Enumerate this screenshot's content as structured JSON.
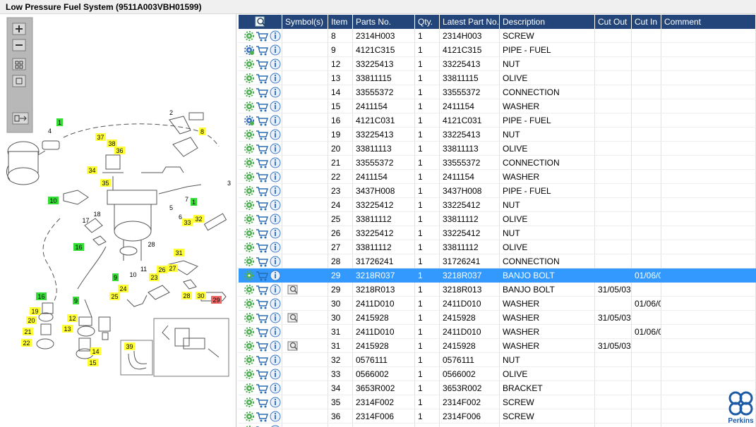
{
  "header": {
    "title": "Low Pressure Fuel System (9511A003VBH01599)"
  },
  "diagram": {
    "callouts": [
      {
        "label": "1",
        "color": "#33dd33"
      },
      {
        "label": "1",
        "color": "#33dd33"
      },
      {
        "label": "10",
        "color": "#33dd33"
      },
      {
        "label": "16",
        "color": "#33dd33"
      },
      {
        "label": "16",
        "color": "#33dd33"
      },
      {
        "label": "9",
        "color": "#33dd33"
      },
      {
        "label": "9",
        "color": "#33dd33"
      },
      {
        "label": "8",
        "color": "#ffff33"
      },
      {
        "label": "37",
        "color": "#ffff33"
      },
      {
        "label": "38",
        "color": "#ffff33"
      },
      {
        "label": "36",
        "color": "#ffff33"
      },
      {
        "label": "34",
        "color": "#ffff33"
      },
      {
        "label": "35",
        "color": "#ffff33"
      },
      {
        "label": "33",
        "color": "#ffff33"
      },
      {
        "label": "32",
        "color": "#ffff33"
      },
      {
        "label": "31",
        "color": "#ffff33"
      },
      {
        "label": "26",
        "color": "#ffff33"
      },
      {
        "label": "27",
        "color": "#ffff33"
      },
      {
        "label": "23",
        "color": "#ffff33"
      },
      {
        "label": "24",
        "color": "#ffff33"
      },
      {
        "label": "25",
        "color": "#ffff33"
      },
      {
        "label": "28",
        "color": "#ffff33"
      },
      {
        "label": "30",
        "color": "#ffff33"
      },
      {
        "label": "19",
        "color": "#ffff33"
      },
      {
        "label": "20",
        "color": "#ffff33"
      },
      {
        "label": "21",
        "color": "#ffff33"
      },
      {
        "label": "22",
        "color": "#ffff33"
      },
      {
        "label": "12",
        "color": "#ffff33"
      },
      {
        "label": "13",
        "color": "#ffff33"
      },
      {
        "label": "14",
        "color": "#ffff33"
      },
      {
        "label": "15",
        "color": "#ffff33"
      },
      {
        "label": "39",
        "color": "#ffff33"
      },
      {
        "label": "29",
        "color": "#ee6666"
      },
      {
        "label": "4"
      },
      {
        "label": "2"
      },
      {
        "label": "3"
      },
      {
        "label": "5"
      },
      {
        "label": "6"
      },
      {
        "label": "7"
      },
      {
        "label": "17"
      },
      {
        "label": "18"
      },
      {
        "label": "10"
      },
      {
        "label": "11"
      },
      {
        "label": "28"
      }
    ]
  },
  "table": {
    "columns": [
      "Symbol(s)",
      "Item",
      "Parts No.",
      "Qty.",
      "Latest Part No.",
      "Description",
      "Cut Out",
      "Cut In",
      "Comment"
    ],
    "rows": [
      {
        "item": 8,
        "part_no": "2314H003",
        "qty": 1,
        "latest_part_no": "2314H003",
        "description": "SCREW"
      },
      {
        "item": 9,
        "part_no": "4121C315",
        "qty": 1,
        "latest_part_no": "4121C315",
        "description": "PIPE - FUEL",
        "icon": "blue-gear"
      },
      {
        "item": 12,
        "part_no": "33225413",
        "qty": 1,
        "latest_part_no": "33225413",
        "description": "NUT"
      },
      {
        "item": 13,
        "part_no": "33811115",
        "qty": 1,
        "latest_part_no": "33811115",
        "description": "OLIVE"
      },
      {
        "item": 14,
        "part_no": "33555372",
        "qty": 1,
        "latest_part_no": "33555372",
        "description": "CONNECTION"
      },
      {
        "item": 15,
        "part_no": "2411154",
        "qty": 1,
        "latest_part_no": "2411154",
        "description": "WASHER"
      },
      {
        "item": 16,
        "part_no": "4121C031",
        "qty": 1,
        "latest_part_no": "4121C031",
        "description": "PIPE - FUEL",
        "icon": "blue-gear"
      },
      {
        "item": 19,
        "part_no": "33225413",
        "qty": 1,
        "latest_part_no": "33225413",
        "description": "NUT"
      },
      {
        "item": 20,
        "part_no": "33811113",
        "qty": 1,
        "latest_part_no": "33811113",
        "description": "OLIVE"
      },
      {
        "item": 21,
        "part_no": "33555372",
        "qty": 1,
        "latest_part_no": "33555372",
        "description": "CONNECTION"
      },
      {
        "item": 22,
        "part_no": "2411154",
        "qty": 1,
        "latest_part_no": "2411154",
        "description": "WASHER"
      },
      {
        "item": 23,
        "part_no": "3437H008",
        "qty": 1,
        "latest_part_no": "3437H008",
        "description": "PIPE - FUEL"
      },
      {
        "item": 24,
        "part_no": "33225412",
        "qty": 1,
        "latest_part_no": "33225412",
        "description": "NUT"
      },
      {
        "item": 25,
        "part_no": "33811112",
        "qty": 1,
        "latest_part_no": "33811112",
        "description": "OLIVE"
      },
      {
        "item": 26,
        "part_no": "33225412",
        "qty": 1,
        "latest_part_no": "33225412",
        "description": "NUT"
      },
      {
        "item": 27,
        "part_no": "33811112",
        "qty": 1,
        "latest_part_no": "33811112",
        "description": "OLIVE"
      },
      {
        "item": 28,
        "part_no": "31726241",
        "qty": 1,
        "latest_part_no": "31726241",
        "description": "CONNECTION"
      },
      {
        "item": 29,
        "part_no": "3218R037",
        "qty": 1,
        "latest_part_no": "3218R037",
        "description": "BANJO BOLT",
        "cut_in": "01/06/0",
        "selected": true
      },
      {
        "item": 29,
        "part_no": "3218R013",
        "qty": 1,
        "latest_part_no": "3218R013",
        "description": "BANJO BOLT",
        "cut_out": "31/05/03",
        "symbol": true
      },
      {
        "item": 30,
        "part_no": "2411D010",
        "qty": 1,
        "latest_part_no": "2411D010",
        "description": "WASHER",
        "cut_in": "01/06/0"
      },
      {
        "item": 30,
        "part_no": "2415928",
        "qty": 1,
        "latest_part_no": "2415928",
        "description": "WASHER",
        "cut_out": "31/05/03",
        "symbol": true
      },
      {
        "item": 31,
        "part_no": "2411D010",
        "qty": 1,
        "latest_part_no": "2411D010",
        "description": "WASHER",
        "cut_in": "01/06/0"
      },
      {
        "item": 31,
        "part_no": "2415928",
        "qty": 1,
        "latest_part_no": "2415928",
        "description": "WASHER",
        "cut_out": "31/05/03",
        "symbol": true
      },
      {
        "item": 32,
        "part_no": "0576111",
        "qty": 1,
        "latest_part_no": "0576111",
        "description": "NUT"
      },
      {
        "item": 33,
        "part_no": "0566002",
        "qty": 1,
        "latest_part_no": "0566002",
        "description": "OLIVE"
      },
      {
        "item": 34,
        "part_no": "3653R002",
        "qty": 1,
        "latest_part_no": "3653R002",
        "description": "BRACKET"
      },
      {
        "item": 35,
        "part_no": "2314F002",
        "qty": 1,
        "latest_part_no": "2314F002",
        "description": "SCREW"
      },
      {
        "item": 36,
        "part_no": "2314F006",
        "qty": 1,
        "latest_part_no": "2314F006",
        "description": "SCREW"
      }
    ]
  },
  "logo": {
    "text": "Perkins"
  }
}
